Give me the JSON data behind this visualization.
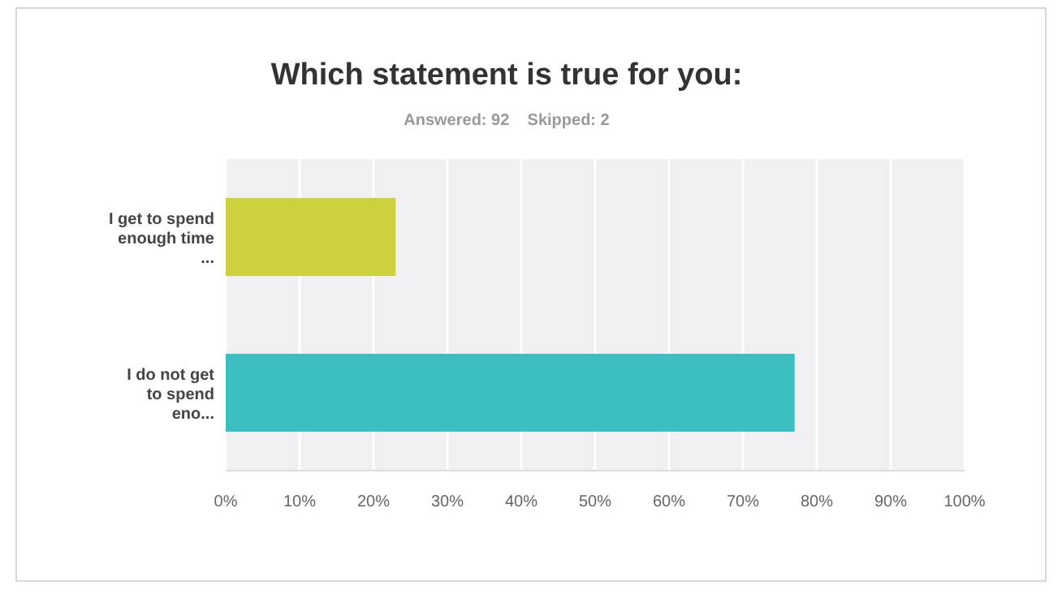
{
  "chart_data": {
    "type": "bar",
    "orientation": "horizontal",
    "title": "Which statement is true for you:",
    "subtitle": "Answered: 92    Skipped: 2",
    "categories": [
      "I get to spend enough time ...",
      "I do not get to spend eno..."
    ],
    "values": [
      23,
      77
    ],
    "colors": [
      "#ccd13d",
      "#3dbec1"
    ],
    "xlim": [
      0,
      100
    ],
    "xticks": [
      {
        "value": 0,
        "label": "0%"
      },
      {
        "value": 10,
        "label": "10%"
      },
      {
        "value": 20,
        "label": "20%"
      },
      {
        "value": 30,
        "label": "30%"
      },
      {
        "value": 40,
        "label": "40%"
      },
      {
        "value": 50,
        "label": "50%"
      },
      {
        "value": 60,
        "label": "60%"
      },
      {
        "value": 70,
        "label": "70%"
      },
      {
        "value": 80,
        "label": "80%"
      },
      {
        "value": 90,
        "label": "90%"
      },
      {
        "value": 100,
        "label": "100%"
      }
    ],
    "grid": "x"
  }
}
